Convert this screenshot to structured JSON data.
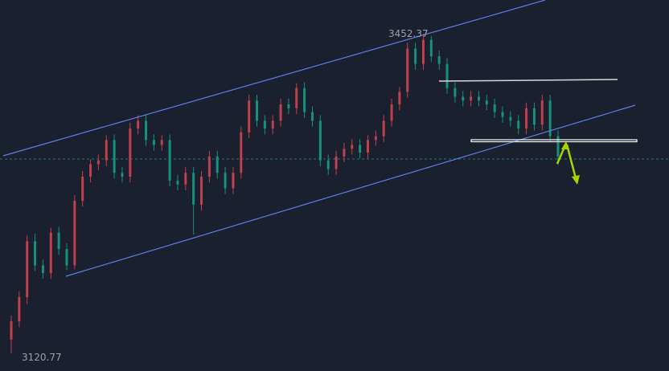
{
  "chart_data": {
    "type": "candlestick",
    "title": "",
    "colors": {
      "up": "#c0404f",
      "down": "#17917c",
      "background": "#1a202d",
      "channel": "#5b7fe6",
      "arrow": "#a8d400",
      "level": "#ffffff"
    },
    "annotations": {
      "max_label": "3452.37",
      "min_label": "3120.77",
      "current_price_line": 3322
    },
    "candles": [
      [
        3135,
        3160,
        3120.77,
        3154
      ],
      [
        3154,
        3185,
        3148,
        3179
      ],
      [
        3179,
        3243,
        3172,
        3237
      ],
      [
        3237,
        3245,
        3206,
        3212
      ],
      [
        3212,
        3218,
        3198,
        3204
      ],
      [
        3204,
        3251,
        3198,
        3246
      ],
      [
        3246,
        3252,
        3223,
        3229
      ],
      [
        3229,
        3235,
        3207,
        3212
      ],
      [
        3212,
        3285,
        3208,
        3279
      ],
      [
        3279,
        3310,
        3273,
        3304
      ],
      [
        3304,
        3322,
        3298,
        3317
      ],
      [
        3317,
        3327,
        3311,
        3321
      ],
      [
        3321,
        3347,
        3315,
        3342
      ],
      [
        3342,
        3348,
        3302,
        3308
      ],
      [
        3308,
        3314,
        3298,
        3304
      ],
      [
        3304,
        3360,
        3298,
        3354
      ],
      [
        3354,
        3368,
        3348,
        3362
      ],
      [
        3362,
        3368,
        3336,
        3342
      ],
      [
        3342,
        3348,
        3331,
        3337
      ],
      [
        3337,
        3347,
        3331,
        3342
      ],
      [
        3342,
        3348,
        3294,
        3300
      ],
      [
        3300,
        3306,
        3290,
        3296
      ],
      [
        3296,
        3314,
        3290,
        3308
      ],
      [
        3308,
        3314,
        3244,
        3275
      ],
      [
        3275,
        3310,
        3269,
        3304
      ],
      [
        3304,
        3331,
        3298,
        3325
      ],
      [
        3325,
        3331,
        3302,
        3308
      ],
      [
        3308,
        3314,
        3286,
        3292
      ],
      [
        3292,
        3314,
        3286,
        3308
      ],
      [
        3308,
        3356,
        3302,
        3350
      ],
      [
        3350,
        3389,
        3344,
        3383
      ],
      [
        3383,
        3389,
        3356,
        3362
      ],
      [
        3362,
        3368,
        3348,
        3354
      ],
      [
        3354,
        3368,
        3348,
        3362
      ],
      [
        3362,
        3385,
        3356,
        3379
      ],
      [
        3379,
        3385,
        3369,
        3375
      ],
      [
        3375,
        3401,
        3369,
        3396
      ],
      [
        3396,
        3402,
        3365,
        3371
      ],
      [
        3371,
        3377,
        3356,
        3362
      ],
      [
        3362,
        3368,
        3315,
        3321
      ],
      [
        3321,
        3327,
        3306,
        3312
      ],
      [
        3312,
        3331,
        3306,
        3325
      ],
      [
        3325,
        3339,
        3319,
        3333
      ],
      [
        3333,
        3343,
        3327,
        3337
      ],
      [
        3337,
        3343,
        3323,
        3329
      ],
      [
        3329,
        3347,
        3323,
        3342
      ],
      [
        3342,
        3352,
        3336,
        3346
      ],
      [
        3346,
        3368,
        3340,
        3362
      ],
      [
        3362,
        3385,
        3356,
        3379
      ],
      [
        3379,
        3397,
        3373,
        3392
      ],
      [
        3392,
        3443,
        3386,
        3437
      ],
      [
        3437,
        3443,
        3415,
        3421
      ],
      [
        3421,
        3452.37,
        3415,
        3446
      ],
      [
        3446,
        3450,
        3423,
        3429
      ],
      [
        3429,
        3435,
        3415,
        3421
      ],
      [
        3421,
        3427,
        3390,
        3396
      ],
      [
        3396,
        3402,
        3381,
        3387
      ],
      [
        3387,
        3393,
        3377,
        3383
      ],
      [
        3383,
        3393,
        3377,
        3387
      ],
      [
        3387,
        3393,
        3377,
        3383
      ],
      [
        3383,
        3389,
        3373,
        3379
      ],
      [
        3379,
        3385,
        3365,
        3371
      ],
      [
        3371,
        3377,
        3360,
        3366
      ],
      [
        3366,
        3372,
        3356,
        3362
      ],
      [
        3362,
        3368,
        3348,
        3354
      ],
      [
        3354,
        3381,
        3348,
        3375
      ],
      [
        3375,
        3381,
        3352,
        3358
      ],
      [
        3358,
        3389,
        3352,
        3383
      ],
      [
        3383,
        3389,
        3340,
        3346
      ],
      [
        3346,
        3352,
        3316,
        3325
      ]
    ]
  }
}
